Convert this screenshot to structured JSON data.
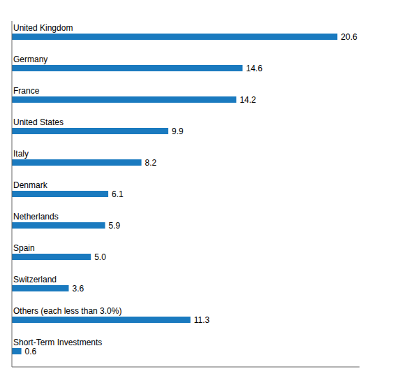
{
  "chart_data": {
    "type": "bar",
    "orientation": "horizontal",
    "categories": [
      "United Kingdom",
      "Germany",
      "France",
      "United States",
      "Italy",
      "Denmark",
      "Netherlands",
      "Spain",
      "Switzerland",
      "Others (each less than 3.0%)",
      "Short-Term Investments"
    ],
    "values": [
      20.6,
      14.6,
      14.2,
      9.9,
      8.2,
      6.1,
      5.9,
      5.0,
      3.6,
      11.3,
      0.6
    ],
    "value_labels": [
      "20.6",
      "14.6",
      "14.2",
      "9.9",
      "8.2",
      "6.1",
      "5.9",
      "5.0",
      "3.6",
      "11.3",
      "0.6"
    ],
    "color": "#1a7abf",
    "xlim": [
      0,
      22
    ],
    "data_labels": true,
    "tick_labels": false
  }
}
